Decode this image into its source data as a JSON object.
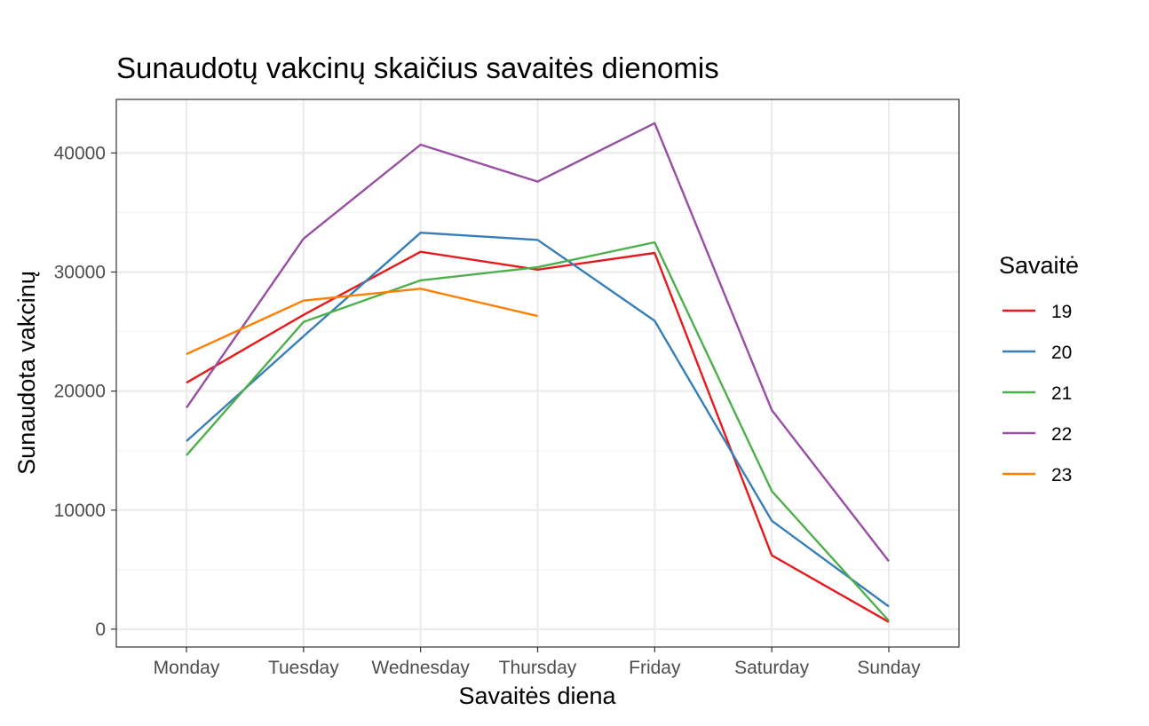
{
  "chart_data": {
    "type": "line",
    "title": "Sunaudotų vakcinų skaičius savaitės dienomis",
    "xlabel": "Savaitės diena",
    "ylabel": "Sunaudota vakcinų",
    "categories": [
      "Monday",
      "Tuesday",
      "Wednesday",
      "Thursday",
      "Friday",
      "Saturday",
      "Sunday"
    ],
    "ylim": [
      -1500,
      44500
    ],
    "yticks": [
      0,
      10000,
      20000,
      30000,
      40000
    ],
    "ytick_labels": [
      "0",
      "10000",
      "20000",
      "30000",
      "40000"
    ],
    "grid": true,
    "legend": {
      "title": "Savaitė",
      "position": "right"
    },
    "series": [
      {
        "name": "19",
        "color": "#e41a1c",
        "values": [
          20700,
          26400,
          31700,
          30200,
          31600,
          6200,
          600
        ]
      },
      {
        "name": "20",
        "color": "#377eb8",
        "values": [
          15800,
          24600,
          33300,
          32700,
          25900,
          9100,
          1900
        ]
      },
      {
        "name": "21",
        "color": "#4daf4a",
        "values": [
          14600,
          25800,
          29300,
          30400,
          32500,
          11600,
          700
        ]
      },
      {
        "name": "22",
        "color": "#984ea3",
        "values": [
          18600,
          32800,
          40700,
          37600,
          42500,
          18400,
          5700
        ]
      },
      {
        "name": "23",
        "color": "#ff7f00",
        "values": [
          23100,
          27600,
          28600,
          26300,
          null,
          null,
          null
        ]
      }
    ]
  }
}
